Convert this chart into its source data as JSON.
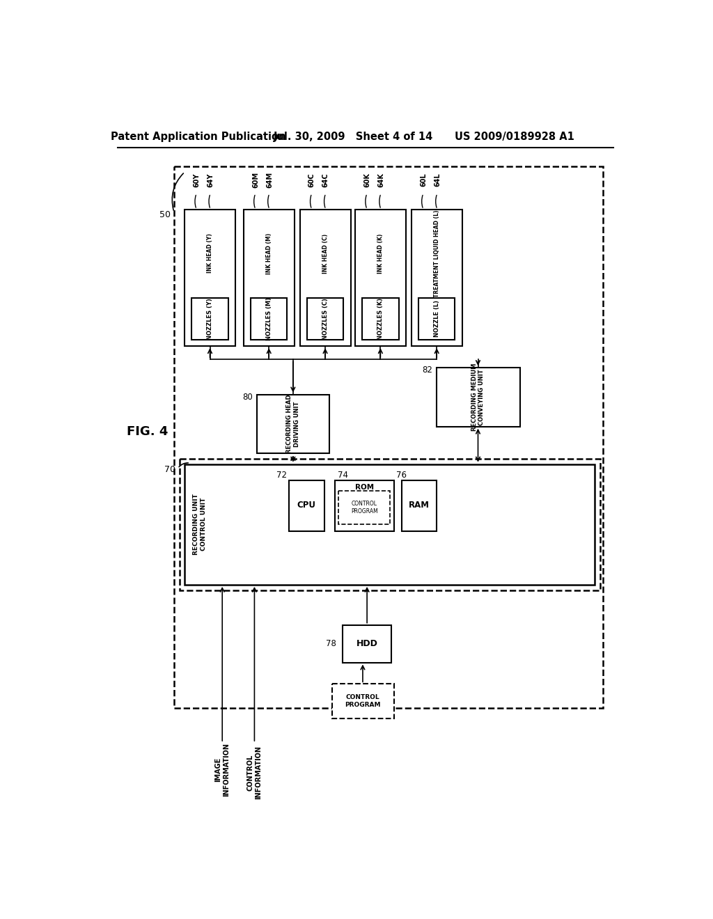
{
  "header_left": "Patent Application Publication",
  "header_mid": "Jul. 30, 2009   Sheet 4 of 14",
  "header_right": "US 2009/0189928 A1",
  "fig_label": "FIG. 4",
  "groups": [
    {
      "ref1": "60Y",
      "ref2": "64Y",
      "head_label": "INK HEAD (Y)",
      "noz_label": "NOZZLES (Y)"
    },
    {
      "ref1": "60M",
      "ref2": "64M",
      "head_label": "INK HEAD (M)",
      "noz_label": "NOZZLES (M)"
    },
    {
      "ref1": "60C",
      "ref2": "64C",
      "head_label": "INK HEAD (C)",
      "noz_label": "NOZZLES (C)"
    },
    {
      "ref1": "60K",
      "ref2": "64K",
      "head_label": "INK HEAD (K)",
      "noz_label": "NOZZLES (K)"
    },
    {
      "ref1": "60L",
      "ref2": "64L",
      "head_label": "TREATMENT LIQUID HEAD (L)",
      "noz_label": "NOZZLE (L)"
    }
  ],
  "bg": "#ffffff",
  "lc": "#000000",
  "header_fs": 10.5,
  "label_fs": 7.5
}
